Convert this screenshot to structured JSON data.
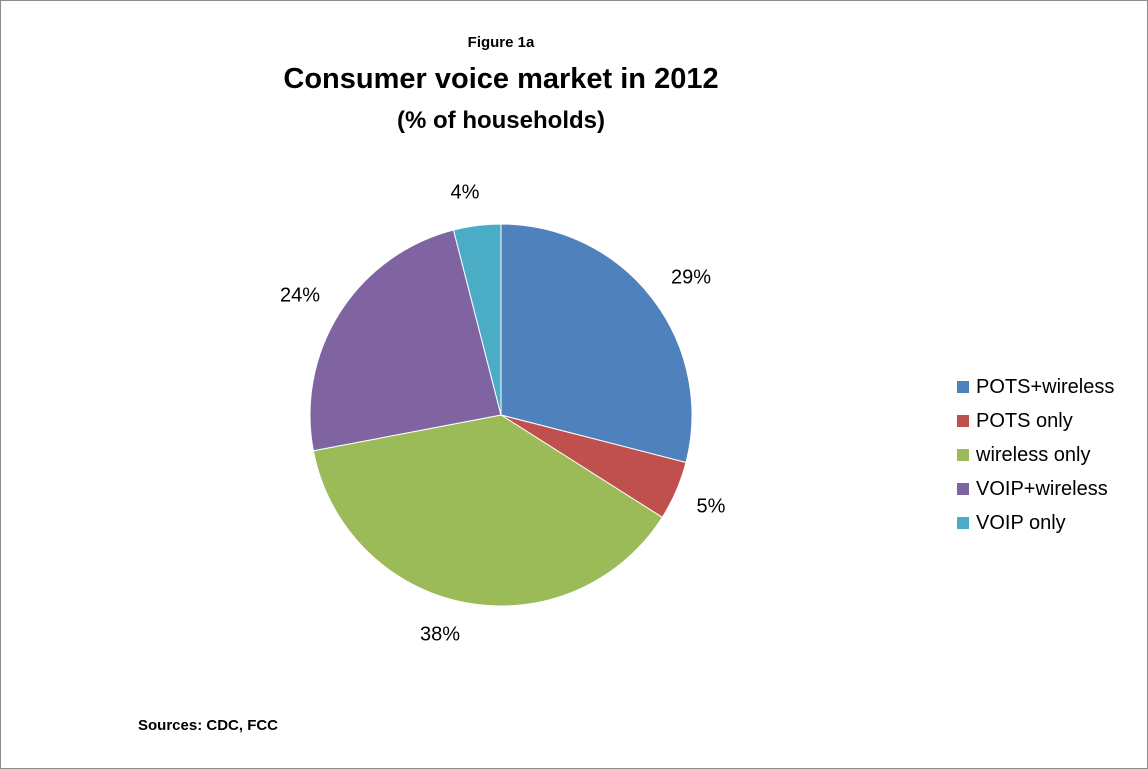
{
  "figure_label": "Figure 1a",
  "source": "Sources: CDC, FCC",
  "chart_data": {
    "type": "pie",
    "title": "Consumer voice market in 2012",
    "subtitle": "(% of households)",
    "categories": [
      "POTS+wireless",
      "POTS only",
      "wireless only",
      "VOIP+wireless",
      "VOIP only"
    ],
    "values": [
      29,
      5,
      38,
      24,
      4
    ],
    "value_labels": [
      "29%",
      "5%",
      "38%",
      "24%",
      "4%"
    ],
    "colors": [
      "#4F81BD",
      "#C0504D",
      "#9BBB59",
      "#8064A2",
      "#4BACC6"
    ],
    "start_angle": "12 o'clock",
    "direction": "clockwise",
    "legend_position": "right"
  }
}
